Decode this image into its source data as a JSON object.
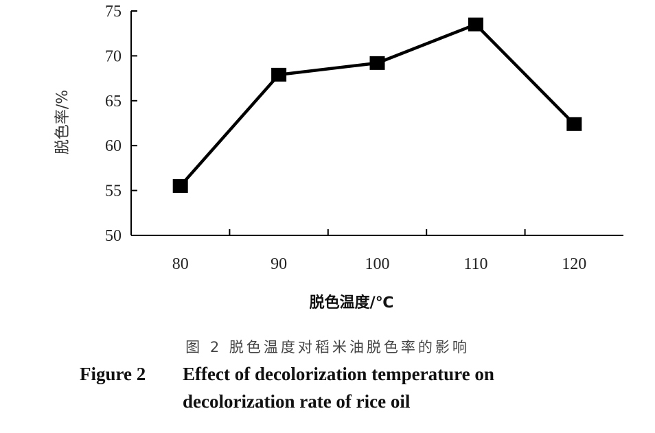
{
  "chart_data": {
    "type": "line",
    "x": [
      80,
      90,
      100,
      110,
      120
    ],
    "series": [
      {
        "values": [
          55.5,
          67.9,
          69.2,
          73.5,
          62.4
        ]
      }
    ],
    "xlabel": "脱色温度/℃",
    "ylabel": "脱色率/%",
    "xlim": [
      75,
      125
    ],
    "ylim": [
      50,
      75
    ],
    "xticks": [
      80,
      90,
      100,
      110,
      120
    ],
    "yticks": [
      50,
      55,
      60,
      65,
      70,
      75
    ],
    "marker": "square",
    "line_color": "#000000",
    "grid": false
  },
  "caption": {
    "cn": "图 2   脱色温度对稻米油脱色率的影响",
    "en_label": "Figure 2",
    "en_line1": "Effect of decolorization temperature on",
    "en_line2": "decolorization rate of rice oil"
  }
}
